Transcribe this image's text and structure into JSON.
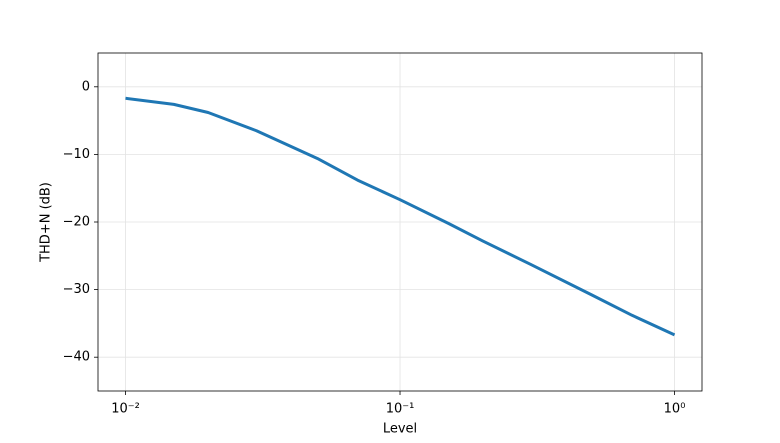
{
  "chart_data": {
    "type": "line",
    "xlabel": "Level",
    "ylabel": "THD+N (dB)",
    "x": [
      0.01,
      0.015,
      0.02,
      0.03,
      0.05,
      0.07,
      0.1,
      0.15,
      0.2,
      0.3,
      0.5,
      0.7,
      1
    ],
    "series": [
      {
        "color": "#1f77b4",
        "values": [
          -1.7,
          -2.6,
          -3.8,
          -6.5,
          -10.6,
          -13.8,
          -16.7,
          -20.2,
          -22.8,
          -26.3,
          -30.8,
          -33.8,
          -36.7
        ]
      }
    ],
    "xlog": true,
    "xlim": [
      0.00794,
      1.259
    ],
    "ylim": [
      -45,
      5
    ],
    "xticks": [
      {
        "value": 0.01,
        "label": "10⁻²"
      },
      {
        "value": 0.1,
        "label": "10⁻¹"
      },
      {
        "value": 1,
        "label": "10⁰"
      }
    ],
    "yticks": [
      {
        "value": 0,
        "label": "0"
      },
      {
        "value": -10,
        "label": "−10"
      },
      {
        "value": -20,
        "label": "−20"
      },
      {
        "value": -30,
        "label": "−30"
      },
      {
        "value": -40,
        "label": "−40"
      }
    ],
    "grid": true
  }
}
